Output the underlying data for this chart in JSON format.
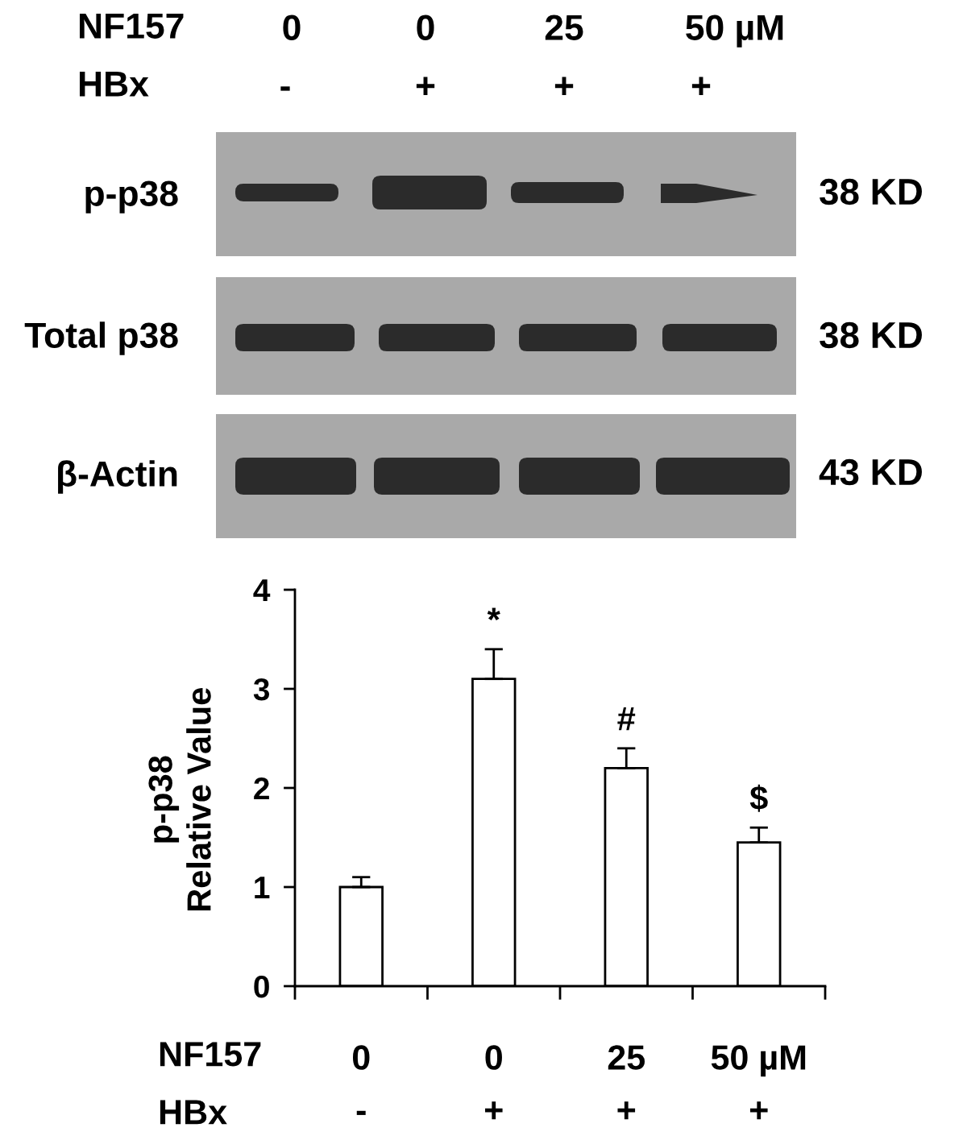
{
  "chart_data": {
    "type": "bar",
    "categories": [
      "0\n-",
      "0\n+",
      "25\n+",
      "50 µM\n+"
    ],
    "values": [
      1.0,
      3.1,
      2.2,
      1.45
    ],
    "errors": [
      [
        1.0,
        1.1
      ],
      [
        3.1,
        3.4
      ],
      [
        2.2,
        2.4
      ],
      [
        1.45,
        1.6
      ]
    ],
    "color": "#ffffff",
    "ylabel": "p-p38\nRelative Value",
    "ylim": [
      0,
      4
    ],
    "yticks": [
      0,
      1,
      2,
      3,
      4
    ],
    "grid": false,
    "annotations": [
      "NF157",
      "0",
      "0",
      "25",
      "50 µM",
      "HBx",
      "-",
      "+",
      "+",
      "+",
      "p-p38",
      "Total p38",
      "β-Actin",
      "38 KD",
      "38 KD",
      "43 KD",
      "*",
      "#",
      "$",
      "NF157",
      "HBx"
    ]
  }
}
